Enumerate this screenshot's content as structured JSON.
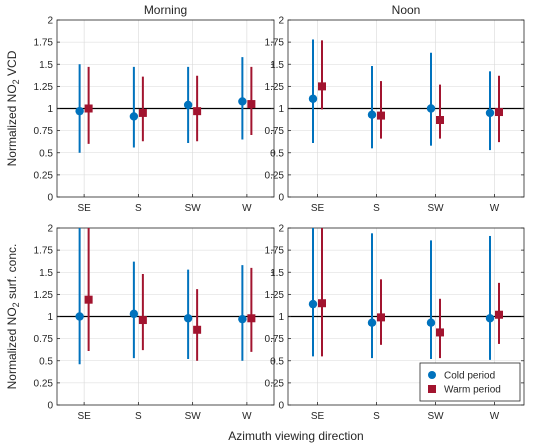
{
  "figure": {
    "xlabel": "Azimuth viewing direction",
    "colors": {
      "cold": "#0072BD",
      "warm": "#A2142F",
      "grid": "#d9d9d9",
      "axis": "#262626",
      "ref": "#000000"
    },
    "legend": {
      "placement": "bottom-right of lower-right panel"
    }
  },
  "chart_data": [
    {
      "type": "scatter",
      "title": "Morning",
      "ylabel_parts": [
        "Normalized NO",
        "2",
        " VCD"
      ],
      "categories": [
        "SE",
        "S",
        "SW",
        "W"
      ],
      "ylim": [
        0,
        2
      ],
      "yticks": [
        "0",
        "0.25",
        "0.5",
        "0.75",
        "1",
        "1.25",
        "1.5",
        "1.75",
        "2"
      ],
      "grid": true,
      "reference_line": 1,
      "series": [
        {
          "name": "Cold period",
          "marker": "circle",
          "values": [
            0.97,
            0.91,
            1.04,
            1.08
          ],
          "lower": [
            0.5,
            0.56,
            0.61,
            0.65
          ],
          "upper": [
            1.5,
            1.47,
            1.47,
            1.58
          ]
        },
        {
          "name": "Warm period",
          "marker": "square",
          "values": [
            1.0,
            0.95,
            0.97,
            1.05
          ],
          "lower": [
            0.6,
            0.63,
            0.63,
            0.7
          ],
          "upper": [
            1.47,
            1.36,
            1.37,
            1.47
          ]
        }
      ]
    },
    {
      "type": "scatter",
      "title": "Noon",
      "categories": [
        "SE",
        "S",
        "SW",
        "W"
      ],
      "ylim": [
        0,
        2
      ],
      "yticks": [
        "0",
        "0.25",
        "0.5",
        "0.75",
        "1",
        "1.25",
        "1.5",
        "1.75",
        "2"
      ],
      "grid": true,
      "reference_line": 1,
      "series": [
        {
          "name": "Cold period",
          "marker": "circle",
          "values": [
            1.11,
            0.93,
            1.0,
            0.95
          ],
          "lower": [
            0.61,
            0.55,
            0.58,
            0.53
          ],
          "upper": [
            1.78,
            1.48,
            1.63,
            1.42
          ]
        },
        {
          "name": "Warm period",
          "marker": "square",
          "values": [
            1.25,
            0.92,
            0.87,
            0.96
          ],
          "lower": [
            0.99,
            0.66,
            0.66,
            0.62
          ],
          "upper": [
            1.77,
            1.31,
            1.27,
            1.37
          ]
        }
      ]
    },
    {
      "type": "scatter",
      "ylabel_parts": [
        "Normalized NO",
        "2",
        " surf. conc."
      ],
      "categories": [
        "SE",
        "S",
        "SW",
        "W"
      ],
      "ylim": [
        0,
        2
      ],
      "yticks": [
        "0",
        "0.25",
        "0.5",
        "0.75",
        "1",
        "1.25",
        "1.5",
        "1.75",
        "2"
      ],
      "grid": true,
      "reference_line": 1,
      "series": [
        {
          "name": "Cold period",
          "marker": "circle",
          "values": [
            1.0,
            1.03,
            0.98,
            0.97
          ],
          "lower": [
            0.46,
            0.53,
            0.52,
            0.5
          ],
          "upper": [
            2.0,
            1.62,
            1.53,
            1.58
          ]
        },
        {
          "name": "Warm period",
          "marker": "square",
          "values": [
            1.19,
            0.96,
            0.85,
            0.98
          ],
          "lower": [
            0.61,
            0.62,
            0.5,
            0.6
          ],
          "upper": [
            2.0,
            1.48,
            1.31,
            1.55
          ]
        }
      ]
    },
    {
      "type": "scatter",
      "categories": [
        "SE",
        "S",
        "SW",
        "W"
      ],
      "ylim": [
        0,
        2
      ],
      "yticks": [
        "0",
        "0.25",
        "0.5",
        "0.75",
        "1",
        "1.25",
        "1.5",
        "1.75",
        "2"
      ],
      "grid": true,
      "reference_line": 1,
      "legend": true,
      "series": [
        {
          "name": "Cold period",
          "marker": "circle",
          "values": [
            1.14,
            0.93,
            0.93,
            0.98
          ],
          "lower": [
            0.55,
            0.53,
            0.52,
            0.51
          ],
          "upper": [
            2.0,
            1.94,
            1.86,
            1.91
          ]
        },
        {
          "name": "Warm period",
          "marker": "square",
          "values": [
            1.15,
            0.99,
            0.82,
            1.02
          ],
          "lower": [
            0.55,
            0.68,
            0.53,
            0.69
          ],
          "upper": [
            2.0,
            1.42,
            1.2,
            1.38
          ]
        }
      ]
    }
  ]
}
